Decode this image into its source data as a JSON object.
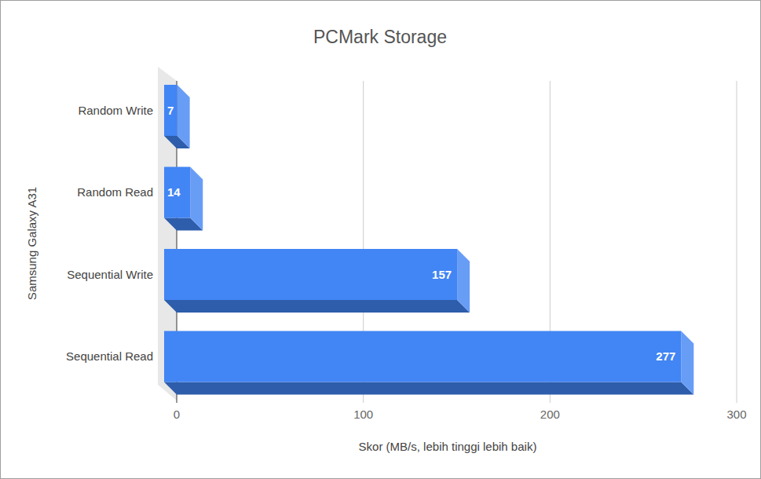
{
  "chart_data": {
    "type": "bar",
    "title": "PCMark Storage",
    "xlabel": "Skor (MB/s, lebih tinggi lebih baik)",
    "ylabel": "Samsung Galaxy A31",
    "categories": [
      "Random Write",
      "Random Read",
      "Sequential Write",
      "Sequential Read"
    ],
    "values": [
      7,
      14,
      157,
      277
    ],
    "color": "#4285f4",
    "orientation": "horizontal",
    "data_labels": true,
    "grid": true,
    "xlim": [
      0,
      300
    ],
    "xticks": [
      0,
      100,
      200,
      300
    ]
  }
}
